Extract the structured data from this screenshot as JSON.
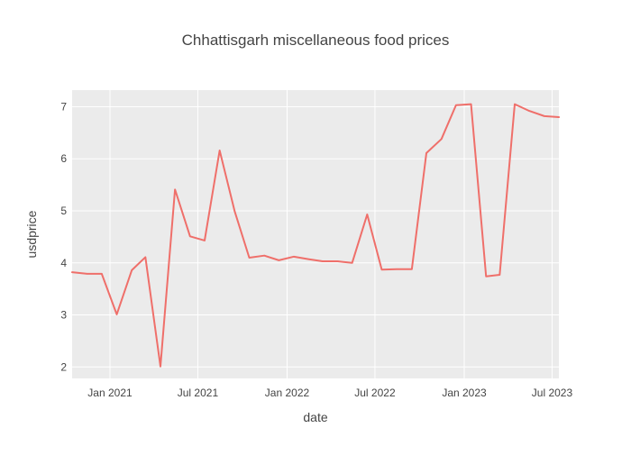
{
  "chart_data": {
    "type": "line",
    "title": "Chhattisgarh miscellaneous food prices",
    "xlabel": "date",
    "ylabel": "usdprice",
    "x_range": [
      "2020-10-15",
      "2023-07-15"
    ],
    "ylim": [
      1.78,
      7.32
    ],
    "y_ticks": [
      2,
      3,
      4,
      5,
      6,
      7
    ],
    "x_ticks": [
      {
        "date": "2021-01-01",
        "label": "Jan 2021"
      },
      {
        "date": "2021-07-01",
        "label": "Jul 2021"
      },
      {
        "date": "2022-01-01",
        "label": "Jan 2022"
      },
      {
        "date": "2022-07-01",
        "label": "Jul 2022"
      },
      {
        "date": "2023-01-01",
        "label": "Jan 2023"
      },
      {
        "date": "2023-07-01",
        "label": "Jul 2023"
      }
    ],
    "grid": true,
    "line_color": "#EF6F6A",
    "plot_background": "#EBEBEB",
    "series": [
      {
        "x": [
          "2020-10-15",
          "2020-11-15",
          "2020-12-15",
          "2021-01-15",
          "2021-02-15",
          "2021-03-15",
          "2021-04-15",
          "2021-05-15",
          "2021-06-15",
          "2021-07-15",
          "2021-08-15",
          "2021-09-15",
          "2021-10-15",
          "2021-11-15",
          "2021-12-15",
          "2022-01-15",
          "2022-02-15",
          "2022-03-15",
          "2022-04-15",
          "2022-05-15",
          "2022-06-15",
          "2022-07-15",
          "2022-08-15",
          "2022-09-15",
          "2022-10-15",
          "2022-11-15",
          "2022-12-15",
          "2023-01-15",
          "2023-02-15",
          "2023-03-15",
          "2023-04-15",
          "2023-05-15",
          "2023-06-15",
          "2023-07-15"
        ],
        "y": [
          3.82,
          3.79,
          3.79,
          3.01,
          3.86,
          4.11,
          2.01,
          5.41,
          4.51,
          4.43,
          6.16,
          4.99,
          4.1,
          4.14,
          4.05,
          4.12,
          4.07,
          4.03,
          4.03,
          4.0,
          4.93,
          3.87,
          3.88,
          3.88,
          6.11,
          6.38,
          7.03,
          7.05,
          3.74,
          3.77,
          7.05,
          6.92,
          6.82,
          6.8
        ]
      }
    ]
  }
}
